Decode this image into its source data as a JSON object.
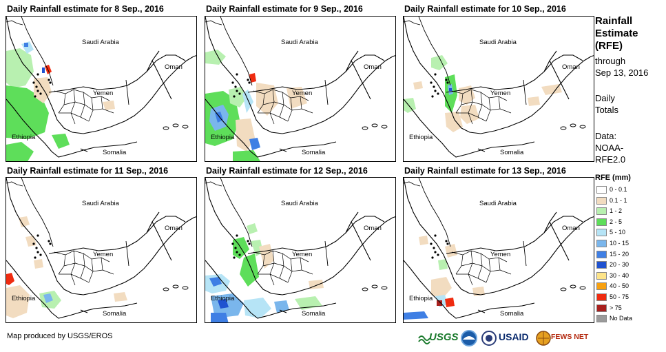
{
  "panels": [
    {
      "title": "Daily Rainfall estimate for 8 Sep., 2016",
      "day": 8
    },
    {
      "title": "Daily Rainfall estimate for 9 Sep., 2016",
      "day": 9
    },
    {
      "title": "Daily Rainfall estimate for 10 Sep., 2016",
      "day": 10
    },
    {
      "title": "Daily Rainfall estimate for 11 Sep., 2016",
      "day": 11
    },
    {
      "title": "Daily Rainfall estimate for 12 Sep., 2016",
      "day": 12
    },
    {
      "title": "Daily Rainfall estimate for 13 Sep., 2016",
      "day": 13
    }
  ],
  "map_labels": {
    "saudi": "Saudi Arabia",
    "oman": "Oman",
    "yemen": "Yemen",
    "ethiopia": "Ethiopia",
    "somalia": "Somalia"
  },
  "sidebar": {
    "title_lines": [
      "Rainfall",
      "Estimate",
      "(RFE)"
    ],
    "sub_lines": [
      "through",
      "Sep 13, 2016"
    ],
    "daily_lines": [
      "Daily",
      "Totals"
    ],
    "data_lines": [
      "Data:",
      "NOAA-",
      "RFE2.0"
    ]
  },
  "legend": {
    "title": "RFE (mm)",
    "items": [
      {
        "label": "0 - 0.1",
        "color": "#ffffff"
      },
      {
        "label": "0.1 - 1",
        "color": "#f2dcc0"
      },
      {
        "label": "1 - 2",
        "color": "#b8f0b0"
      },
      {
        "label": "2 - 5",
        "color": "#5ede5a"
      },
      {
        "label": "5 - 10",
        "color": "#b6e4f6"
      },
      {
        "label": "10 - 15",
        "color": "#7ab6ec"
      },
      {
        "label": "15 - 20",
        "color": "#3f7fe4"
      },
      {
        "label": "20 - 30",
        "color": "#1f52d0"
      },
      {
        "label": "30 - 40",
        "color": "#fde48a"
      },
      {
        "label": "40 - 50",
        "color": "#f7a010"
      },
      {
        "label": "50 - 75",
        "color": "#ef2b10"
      },
      {
        "label": "> 75",
        "color": "#a8201e"
      },
      {
        "label": "No Data",
        "color": "#9a9a9a"
      }
    ]
  },
  "credit": "Map produced by USGS/EROS",
  "logos": {
    "usgs": "USGS",
    "usaid": "USAID",
    "fews": "FEWS NET"
  }
}
